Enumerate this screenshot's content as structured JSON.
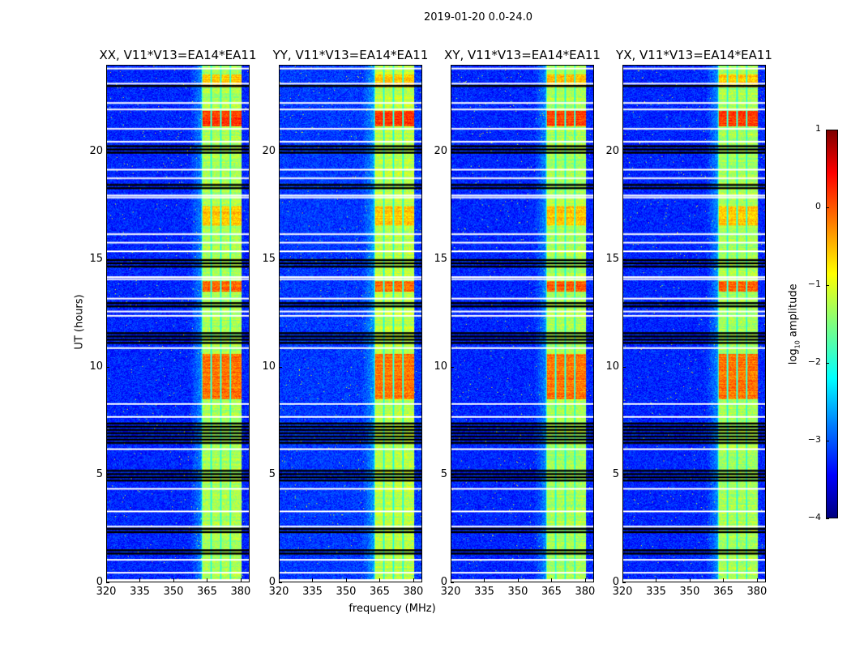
{
  "chart_data": {
    "type": "heatmap",
    "title": "2019-01-20 0.0-24.0",
    "xlabel": "frequency (MHz)",
    "ylabel": "UT (hours)",
    "xlim": [
      320,
      384
    ],
    "ylim": [
      0,
      24
    ],
    "xticks": [
      320,
      335,
      350,
      365,
      380
    ],
    "yticks": [
      0,
      5,
      10,
      15,
      20
    ],
    "colorbar": {
      "label": "log10 amplitude",
      "label_main": "log",
      "label_sub": "10",
      "label_tail": " amplitude",
      "range": [
        -4,
        1
      ],
      "ticks": [
        1,
        0,
        -1,
        -2,
        -3,
        -4
      ],
      "tick_labels": [
        "1",
        "0",
        "−1",
        "−2",
        "−3",
        "−4"
      ],
      "colormap": "jet"
    },
    "panels": [
      {
        "title": "XX, V11*V13=EA14*EA11",
        "background_level": -3.2,
        "band_level": -1.3
      },
      {
        "title": "YY, V11*V13=EA14*EA11",
        "background_level": -3.1,
        "band_level": -1.2
      },
      {
        "title": "XY, V11*V13=EA14*EA11",
        "background_level": -3.2,
        "band_level": -1.3
      },
      {
        "title": "YX, V11*V13=EA14*EA11",
        "background_level": -3.2,
        "band_level": -1.3
      }
    ],
    "bright_band_mhz": [
      362.5,
      380.5
    ],
    "channel_edges_mhz": [
      366.8,
      371.2,
      375.6
    ],
    "high_amplitude_hours": [
      [
        21.2,
        21.9,
        0.1
      ],
      [
        13.5,
        14.0,
        -0.1
      ],
      [
        8.5,
        10.6,
        -0.2
      ],
      [
        16.6,
        17.5,
        -0.6
      ],
      [
        23.0,
        23.6,
        -0.6
      ]
    ],
    "flagged_black_hours": [
      [
        6.4,
        7.4
      ],
      [
        4.7,
        5.2
      ],
      [
        18.3,
        18.5
      ],
      [
        1.2,
        1.5
      ],
      [
        2.2,
        2.5
      ],
      [
        19.9,
        20.3
      ],
      [
        12.8,
        13.0
      ],
      [
        14.6,
        15.0
      ],
      [
        11.0,
        11.6
      ],
      [
        23.0,
        23.1
      ]
    ],
    "flagged_white_hours": [
      0.45,
      1.05,
      2.6,
      3.3,
      4.35,
      6.2,
      7.7,
      8.3,
      10.9,
      12.4,
      12.6,
      13.2,
      14.1,
      14.2,
      15.4,
      15.8,
      16.2,
      17.9,
      18.0,
      18.8,
      19.2,
      20.5,
      21.1,
      22.0,
      22.3,
      23.2,
      23.9
    ]
  }
}
